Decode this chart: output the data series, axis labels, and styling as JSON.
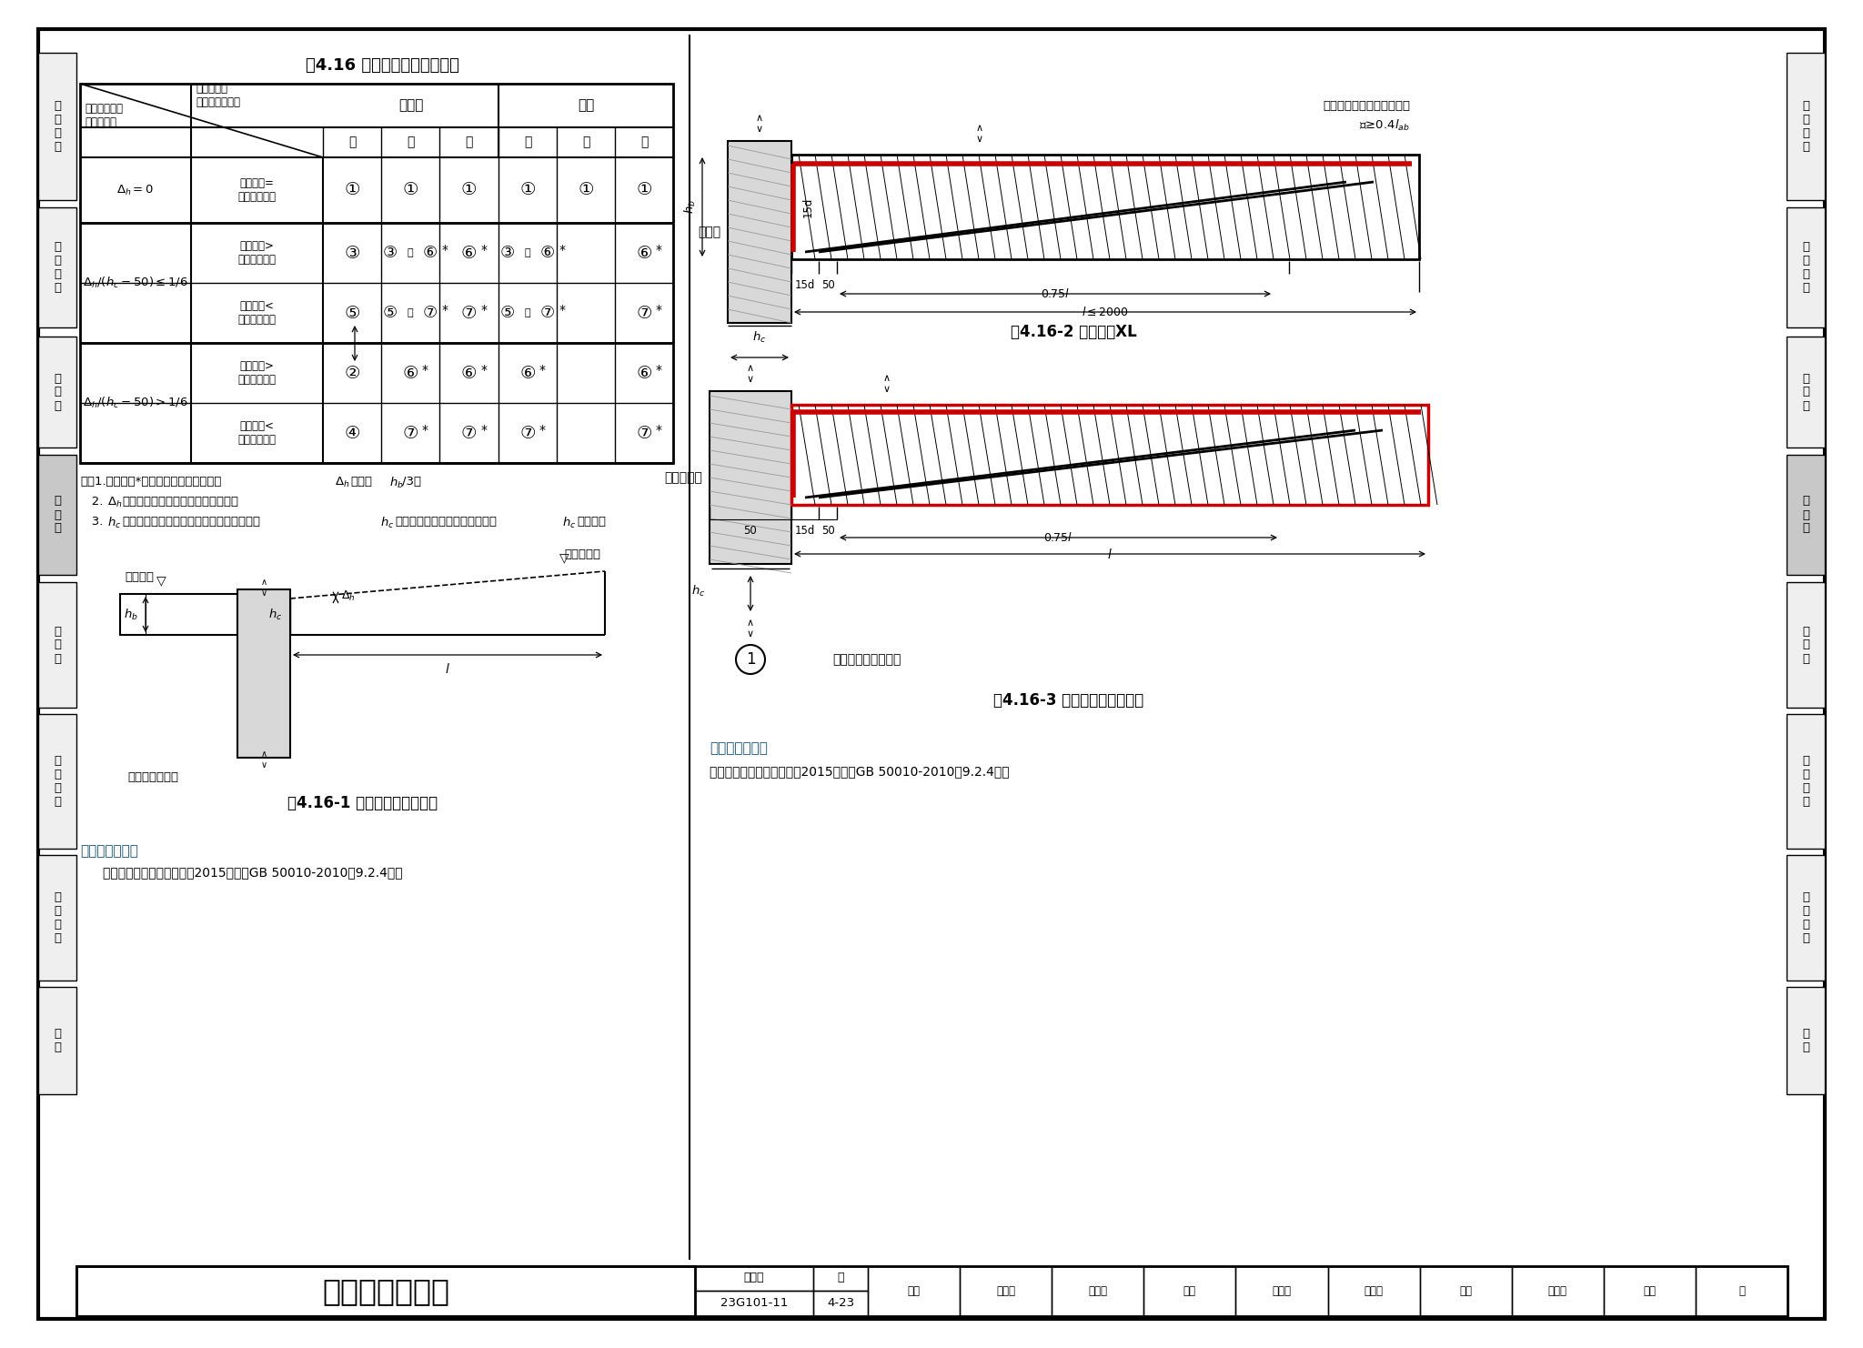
{
  "bg": "#ffffff",
  "table_title": "表4.16 悬臂梁构造节点选用表",
  "fig2_title": "图4.16-2 纯悬臂梁XL",
  "fig3_title": "图4.16-3 梁的悬臂端配筋构造",
  "fig1_title": "图4.16-1 各类悬臂梁参数示意",
  "main_title": "悬臂梁配筋构造",
  "atlas_label": "图集号",
  "atlas_num": "23G101-11",
  "page_label": "页",
  "page_num": "4-23",
  "ref_title": "相关标准条文：",
  "ref_body": "《混凝土结构设计规范》（2015年版）GB 50010-2010第9.2.4条。",
  "note_line1": "注：1.图中标注*号的构造做法中尚应满足",
  "note_line1b": "不大于",
  "note_line1c": "/3。",
  "note_line2": "   2.",
  "note_line2b": "为内跨梁顶面与悬臂梁顶面的高差。",
  "note_line3": "   3.",
  "note_line3b": "为柱截面宽度（高度）；支座为墙时，图中",
  "note_line3c": "为墙体厚度；支座为梁时，图中",
  "note_line3d": "为梁宽。",
  "side_tabs": [
    "一\n般\n构\n造",
    "柱\n和\n节\n点",
    "剪\n力\n墙",
    "梁\n构\n造",
    "板\n构\n造",
    "基\n础\n构\n造",
    "楼\n梯\n构\n造",
    "附\n录"
  ],
  "tab_y": [
    58,
    228,
    370,
    500,
    640,
    785,
    940,
    1085
  ],
  "tab_h": [
    162,
    132,
    122,
    132,
    138,
    148,
    138,
    118
  ],
  "active_tab_idx": 3,
  "red": "#cc0000",
  "blue": "#1a5276",
  "gray_beam": "#c8c8c8",
  "footer_items": [
    "审核",
    "高志富",
    "富士浚",
    "校对",
    "李增银",
    "李帮银",
    "设计",
    "肖军器",
    "肖战",
    "页",
    "4-23"
  ],
  "footer_roles": [
    "审核",
    "校对",
    "设计"
  ],
  "footer_sigs1": [
    "高志富",
    "李增银",
    "肖军器"
  ],
  "footer_sigs2": [
    "富士浚",
    "李帮银",
    "肖战"
  ]
}
